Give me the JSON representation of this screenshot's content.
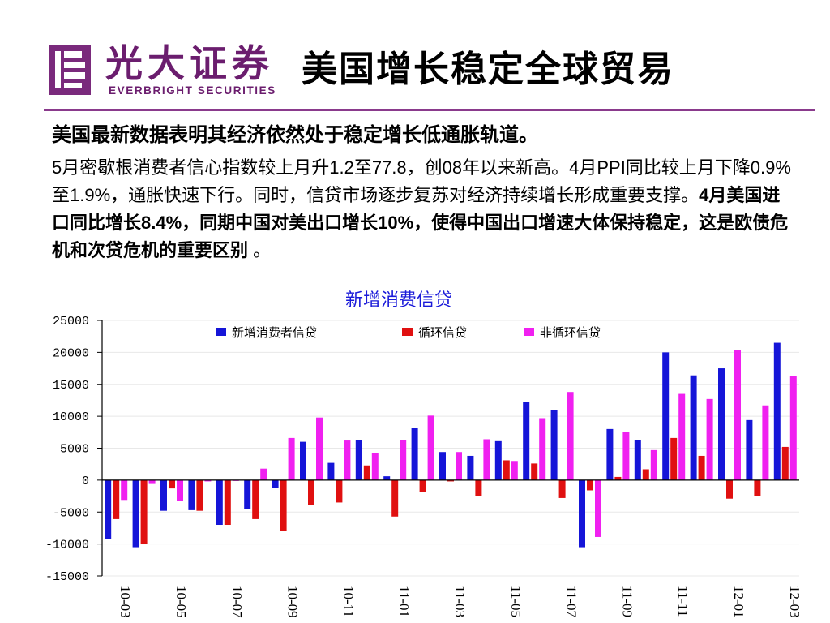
{
  "brand": {
    "name_cn": "光大证券",
    "name_en": "EVERBRIGHT SECURITIES",
    "color": "#6b1d6e"
  },
  "slide": {
    "title": "美国增长稳定全球贸易",
    "lead": "美国最新数据表明其经济依然处于稳定增长低通胀轨道。",
    "paragraph": {
      "p1": "5月密歇根消费者信心指数较上月升1.2至77.8，创08年以来新高。4月PPI同比较上月下降0.9%至1.9%，通胀快速下行。同时，信贷市场逐步复苏对经济持续增长形成重要支撑。",
      "p2_bold": "4月美国进口同比增长8.4%，同期中国对美出口增长10%，使得中国出口增速大体保持稳定，这是欧债危机和次贷危机的重要区别",
      "p3": " 。"
    }
  },
  "chart_caption": "新增消费信贷",
  "chart_data": {
    "type": "bar",
    "categories": [
      "10-03",
      "10-04",
      "10-05",
      "10-06",
      "10-07",
      "10-08",
      "10-09",
      "10-10",
      "10-11",
      "10-12",
      "11-01",
      "11-02",
      "11-03",
      "11-04",
      "11-05",
      "11-06",
      "11-07",
      "11-08",
      "11-09",
      "11-10",
      "11-11",
      "11-12",
      "12-01",
      "12-02",
      "12-03"
    ],
    "x_tick_labels": [
      "10-03",
      "10-05",
      "10-07",
      "10-09",
      "10-11",
      "11-01",
      "11-03",
      "11-05",
      "11-07",
      "11-09",
      "11-11",
      "12-01",
      "12-03"
    ],
    "ylim": [
      -15000,
      25000
    ],
    "y_ticks": [
      "25000",
      "20000",
      "15000",
      "10000",
      "5000",
      "0",
      "-5000",
      "-10000",
      "-15000"
    ],
    "legend_position": "top",
    "series": [
      {
        "name": "新增消费者信贷",
        "color": "#1515d8",
        "values": [
          -9200,
          -10500,
          -4800,
          -4700,
          -7000,
          -4500,
          -1200,
          6000,
          2700,
          6300,
          600,
          8200,
          4400,
          3800,
          6100,
          12200,
          11000,
          -10500,
          8000,
          6300,
          20000,
          16400,
          17500,
          9400,
          21500
        ]
      },
      {
        "name": "循环信贷",
        "color": "#e01010",
        "values": [
          -6100,
          -10000,
          -1300,
          -4800,
          -7000,
          -6100,
          -7900,
          -3900,
          -3500,
          2300,
          -5700,
          -1800,
          -200,
          -2500,
          3100,
          2600,
          -2800,
          -1600,
          500,
          1700,
          6600,
          3800,
          -2900,
          -2500,
          5200
        ]
      },
      {
        "name": "非循环信贷",
        "color": "#f020f0",
        "values": [
          -3100,
          -600,
          -3200,
          -200,
          -100,
          1800,
          6600,
          9800,
          6200,
          4300,
          6300,
          10100,
          4400,
          6400,
          3000,
          9700,
          13800,
          -8900,
          7600,
          4700,
          13500,
          12700,
          20300,
          11700,
          16300
        ]
      }
    ]
  }
}
